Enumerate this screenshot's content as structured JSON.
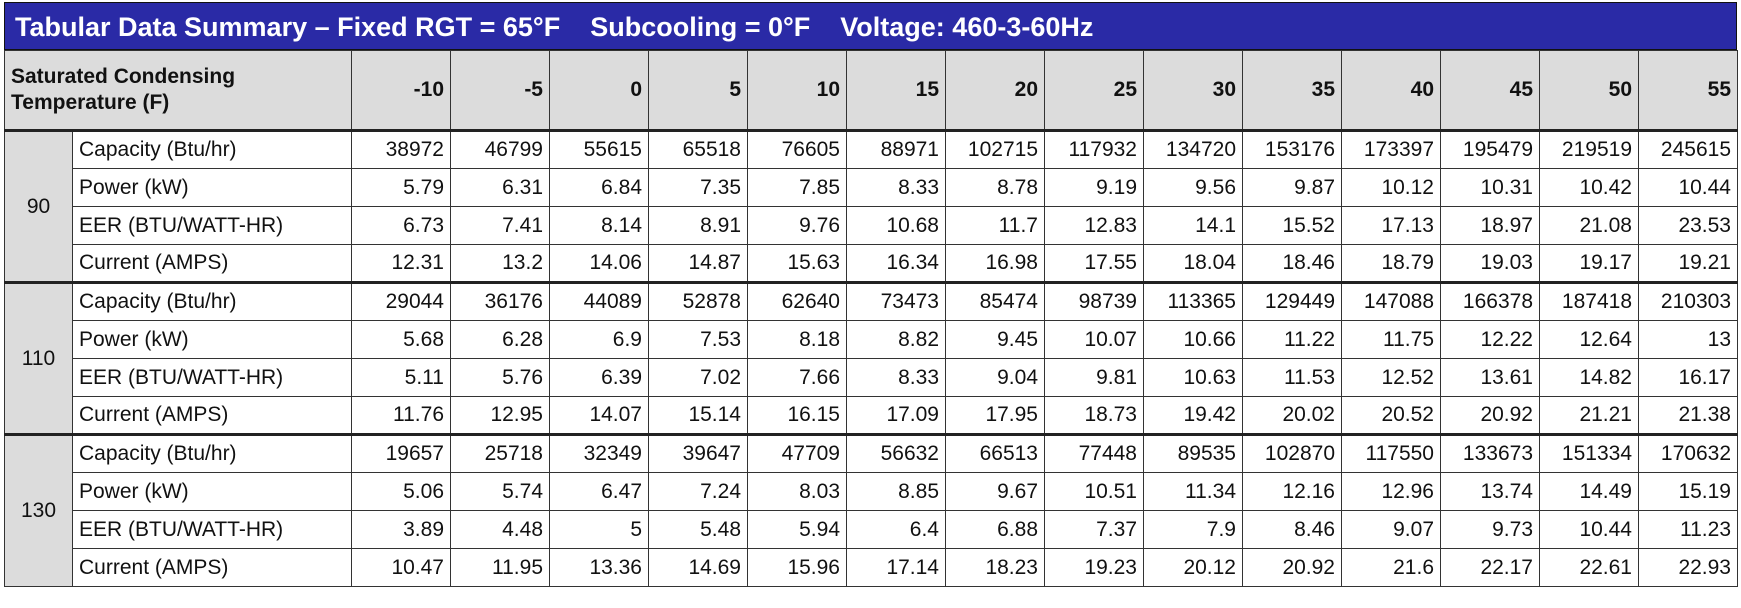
{
  "title": "Tabular Data Summary – Fixed RGT = 65°F    Subcooling = 0°F    Voltage: 460-3-60Hz",
  "header": {
    "corner": "Saturated Condensing Temperature (F)",
    "columns": [
      -10,
      -5,
      0,
      5,
      10,
      15,
      20,
      25,
      30,
      35,
      40,
      45,
      50,
      55
    ]
  },
  "groups": [
    {
      "label": "90",
      "rows": [
        {
          "label": "Capacity (Btu/hr)",
          "values": [
            38972,
            46799,
            55615,
            65518,
            76605,
            88971,
            102715,
            117932,
            134720,
            153176,
            173397,
            195479,
            219519,
            245615
          ]
        },
        {
          "label": "Power (kW)",
          "values": [
            5.79,
            6.31,
            6.84,
            7.35,
            7.85,
            8.33,
            8.78,
            9.19,
            9.56,
            9.87,
            10.12,
            10.31,
            10.42,
            10.44
          ]
        },
        {
          "label": "EER (BTU/WATT-HR)",
          "values": [
            6.73,
            7.41,
            8.14,
            8.91,
            9.76,
            10.68,
            11.7,
            12.83,
            14.1,
            15.52,
            17.13,
            18.97,
            21.08,
            23.53
          ]
        },
        {
          "label": "Current (AMPS)",
          "values": [
            12.31,
            13.2,
            14.06,
            14.87,
            15.63,
            16.34,
            16.98,
            17.55,
            18.04,
            18.46,
            18.79,
            19.03,
            19.17,
            19.21
          ]
        }
      ]
    },
    {
      "label": "110",
      "rows": [
        {
          "label": "Capacity (Btu/hr)",
          "values": [
            29044,
            36176,
            44089,
            52878,
            62640,
            73473,
            85474,
            98739,
            113365,
            129449,
            147088,
            166378,
            187418,
            210303
          ]
        },
        {
          "label": "Power (kW)",
          "values": [
            5.68,
            6.28,
            6.9,
            7.53,
            8.18,
            8.82,
            9.45,
            10.07,
            10.66,
            11.22,
            11.75,
            12.22,
            12.64,
            13
          ]
        },
        {
          "label": "EER (BTU/WATT-HR)",
          "values": [
            5.11,
            5.76,
            6.39,
            7.02,
            7.66,
            8.33,
            9.04,
            9.81,
            10.63,
            11.53,
            12.52,
            13.61,
            14.82,
            16.17
          ]
        },
        {
          "label": "Current (AMPS)",
          "values": [
            11.76,
            12.95,
            14.07,
            15.14,
            16.15,
            17.09,
            17.95,
            18.73,
            19.42,
            20.02,
            20.52,
            20.92,
            21.21,
            21.38
          ]
        }
      ]
    },
    {
      "label": "130",
      "rows": [
        {
          "label": "Capacity (Btu/hr)",
          "values": [
            19657,
            25718,
            32349,
            39647,
            47709,
            56632,
            66513,
            77448,
            89535,
            102870,
            117550,
            133673,
            151334,
            170632
          ]
        },
        {
          "label": "Power (kW)",
          "values": [
            5.06,
            5.74,
            6.47,
            7.24,
            8.03,
            8.85,
            9.67,
            10.51,
            11.34,
            12.16,
            12.96,
            13.74,
            14.49,
            15.19
          ]
        },
        {
          "label": "EER (BTU/WATT-HR)",
          "values": [
            3.89,
            4.48,
            5,
            5.48,
            5.94,
            6.4,
            6.88,
            7.37,
            7.9,
            8.46,
            9.07,
            9.73,
            10.44,
            11.23
          ]
        },
        {
          "label": "Current (AMPS)",
          "values": [
            10.47,
            11.95,
            13.36,
            14.69,
            15.96,
            17.14,
            18.23,
            19.23,
            20.12,
            20.92,
            21.6,
            22.17,
            22.61,
            22.93
          ]
        }
      ]
    }
  ]
}
